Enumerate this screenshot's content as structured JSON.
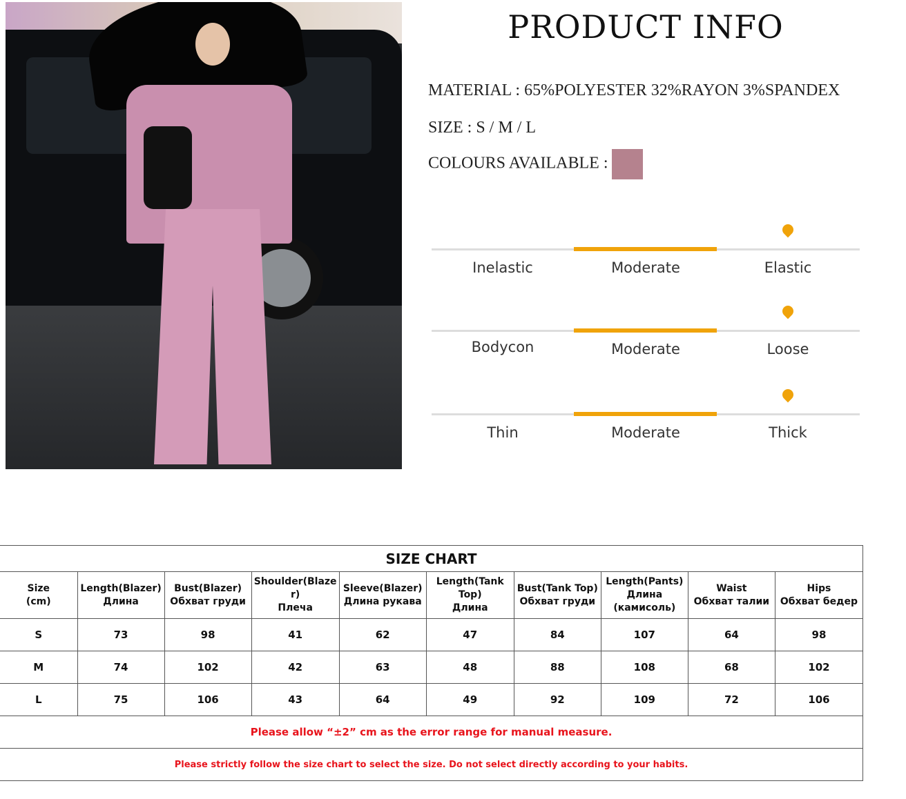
{
  "product_info": {
    "title": "PRODUCT INFO",
    "material": "MATERIAL : 65%POLYESTER 32%RAYON 3%SPANDEX",
    "size": "SIZE : S / M / L",
    "colours_label": "COLOURS AVAILABLE :",
    "colours": [
      "#b5828e"
    ],
    "accent_color": "#f0a30a"
  },
  "scales": [
    {
      "left": "Inelastic",
      "middle": "Moderate",
      "right": "Elastic",
      "selected": "Moderate"
    },
    {
      "left": "Bodycon",
      "middle": "Moderate",
      "right": "Loose",
      "selected": "Moderate"
    },
    {
      "left": "Thin",
      "middle": "Moderate",
      "right": "Thick",
      "selected": "Moderate"
    }
  ],
  "size_chart": {
    "title": "SIZE CHART",
    "headers": [
      [
        "Size",
        "(cm)"
      ],
      [
        "Length(Blazer)",
        "Длина"
      ],
      [
        "Bust(Blazer)",
        "Обхват груди"
      ],
      [
        "Shoulder(Blaze",
        "r)",
        "Плеча"
      ],
      [
        "Sleeve(Blazer)",
        "Длина рукава"
      ],
      [
        "Length(Tank",
        "Top)",
        "Длина"
      ],
      [
        "Bust(Tank Top)",
        "Обхват груди"
      ],
      [
        "Length(Pants)",
        "Длина",
        "(камисоль)"
      ],
      [
        "Waist",
        "Обхват талии"
      ],
      [
        "Hips",
        "Обхват бедер"
      ]
    ],
    "rows": [
      [
        "S",
        "73",
        "98",
        "41",
        "62",
        "47",
        "84",
        "107",
        "64",
        "98"
      ],
      [
        "M",
        "74",
        "102",
        "42",
        "63",
        "48",
        "88",
        "108",
        "68",
        "102"
      ],
      [
        "L",
        "75",
        "106",
        "43",
        "64",
        "49",
        "92",
        "109",
        "72",
        "106"
      ]
    ],
    "note1": "Please allow “±2” cm as the error range for manual measure.",
    "note2": "Please strictly follow the size chart  to select the size. Do not select directly according to your habits.",
    "note_color": "#e8141c"
  }
}
